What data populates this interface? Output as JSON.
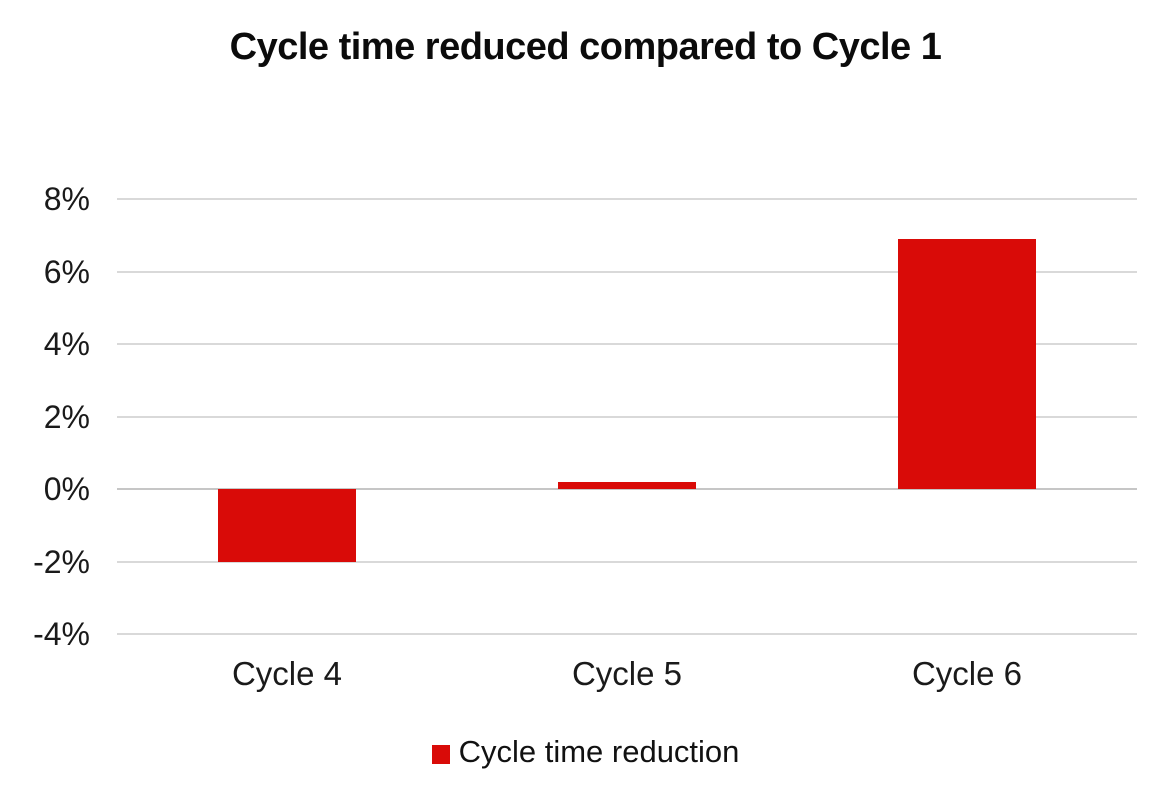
{
  "title": "Cycle time reduced compared to Cycle 1",
  "legend": {
    "label": "Cycle time reduction"
  },
  "colors": {
    "bar": "#d90b08",
    "gridline": "#d9d9d9",
    "zero_gridline": "#c6c6c6",
    "text": "#1a1a1a",
    "background": "#ffffff"
  },
  "chart_data": {
    "type": "bar",
    "title": "Cycle time reduced compared to Cycle 1",
    "categories": [
      "Cycle 4",
      "Cycle 5",
      "Cycle 6"
    ],
    "series": [
      {
        "name": "Cycle time reduction",
        "values": [
          -2,
          0.2,
          6.9
        ]
      }
    ],
    "value_unit": "%",
    "ylim": [
      -4,
      8
    ],
    "ytick_interval": 2,
    "ytick_values": [
      8,
      6,
      4,
      2,
      0,
      -2,
      -4
    ],
    "ytick_labels": [
      "8%",
      "6%",
      "4%",
      "2%",
      "0%",
      "-2%",
      "-4%"
    ],
    "grid": "horizontal",
    "legend_position": "bottom",
    "xlabel": "",
    "ylabel": ""
  }
}
